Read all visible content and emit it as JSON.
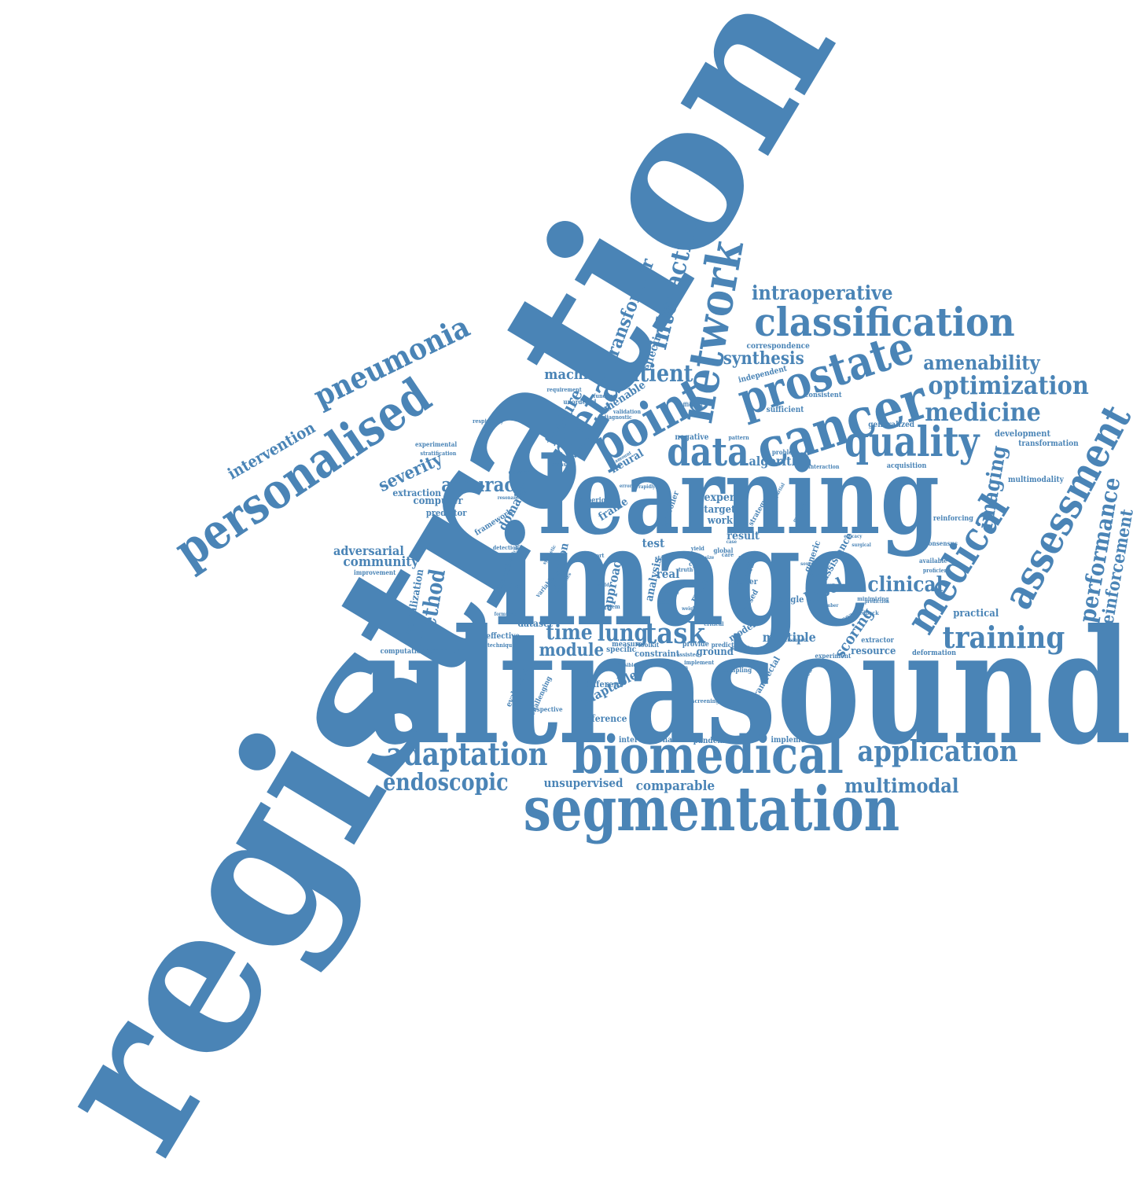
{
  "color": "#4a84b6",
  "background": "#ffffff",
  "words": [
    "registration",
    "ultrasound",
    "image",
    "learning",
    "segmentation",
    "biomedical",
    "cancer",
    "prostate",
    "network",
    "point",
    "personalised",
    "classification",
    "assessment",
    "medical",
    "meta",
    "quality",
    "data",
    "pneumonia",
    "interactive",
    "optimization",
    "training",
    "adaptation",
    "application",
    "medicine",
    "task",
    "intraoperative",
    "performance",
    "amenability",
    "transformer",
    "imaging",
    "endoscopic",
    "multimodal",
    "patient",
    "lung",
    "clinical",
    "accuracy",
    "method",
    "synthesis",
    "time",
    "severity",
    "intervention",
    "reinforcement",
    "module",
    "community",
    "adversarial",
    "machine",
    "feature",
    "scoring",
    "label",
    "comparable",
    "unsupervised",
    "effectiveness",
    "domain",
    "approach",
    "selection",
    "analysis",
    "algorithm",
    "multiple",
    "dataset",
    "computer",
    "extraction",
    "adaptable",
    "expert",
    "target",
    "work",
    "result",
    "test",
    "real",
    "resource",
    "practical",
    "inference",
    "frame",
    "amenable",
    "neural",
    "initialization",
    "predictor",
    "framework",
    "classifier",
    "ground",
    "constraint",
    "specific",
    "different",
    "model",
    "guided",
    "paper",
    "generic",
    "assistance",
    "rapid",
    "closed",
    "single",
    "research",
    "transrectal",
    "interventional",
    "pandemic",
    "implementation",
    "correspondence",
    "independent",
    "consistent",
    "sufficient",
    "generalized",
    "development",
    "transformation",
    "acquisition",
    "multimodality",
    "reinforcing",
    "consensus",
    "available",
    "proficient",
    "extractor",
    "deformation",
    "experiment",
    "evaluation",
    "challenging",
    "effective",
    "computational",
    "condition",
    "technique",
    "improvement",
    "positive",
    "variable",
    "detection",
    "experimental",
    "stratification",
    "respiratory",
    "requirement",
    "diagnostic",
    "validation",
    "efficient",
    "negative",
    "superior",
    "controller",
    "strategy",
    "problem",
    "interaction",
    "pattern",
    "measure",
    "toolkit",
    "provide",
    "predict",
    "possible",
    "sampling",
    "screening",
    "respective",
    "unordered",
    "function",
    "transfer",
    "classical",
    "report",
    "system",
    "cycle",
    "free",
    "global",
    "care",
    "truth",
    "yield",
    "stage",
    "critical",
    "novel",
    "implement",
    "assisted",
    "unseen",
    "acquired",
    "agent",
    "source",
    "minimizing",
    "member",
    "feedback",
    "manner",
    "formulate",
    "resonance",
    "amount",
    "processes",
    "difficult",
    "synthetic",
    "partial",
    "guidance",
    "efficacy",
    "prediction",
    "holdout",
    "feasible",
    "error",
    "rapidly",
    "world",
    "surgical",
    "gold",
    "explore",
    "weight",
    "case",
    "standard",
    "view",
    "score",
    "size"
  ]
}
